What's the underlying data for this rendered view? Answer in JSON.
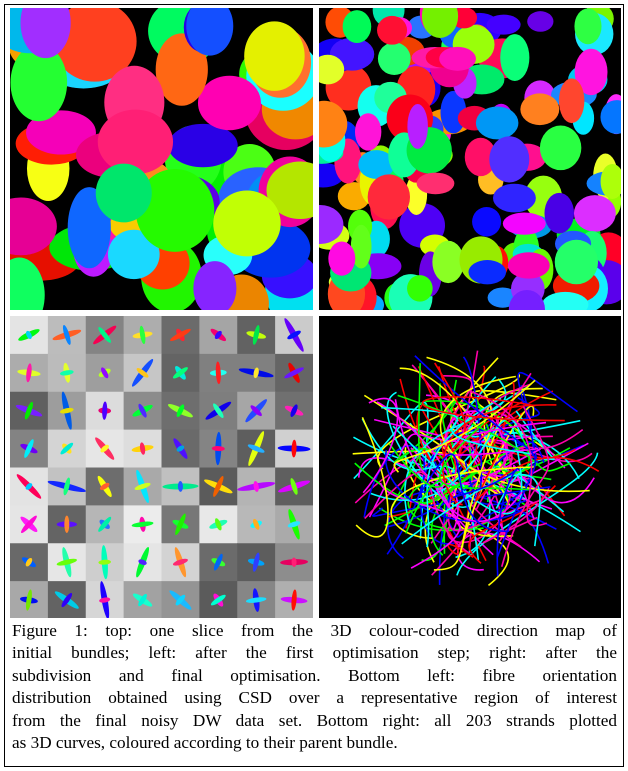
{
  "figure": {
    "caption_lines": [
      "Figure 1: top: one slice from the 3D colour-coded direction map of",
      "initial bundles; left: after the first optimisation step; right: after the",
      "subdivision and final optimisation. Bottom left: fibre orientation",
      "distribution obtained using CSD over a representative region of interest",
      "from the final noisy DW data set. Bottom right: all 203 strands plotted",
      "as 3D curves, coloured according to their parent bundle."
    ]
  }
}
